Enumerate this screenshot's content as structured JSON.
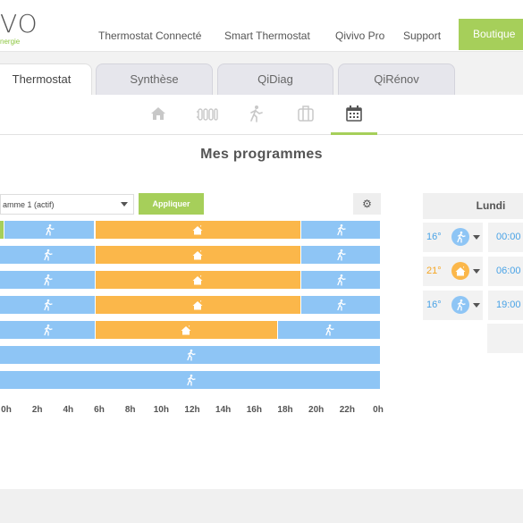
{
  "brand": {
    "logo_text": "VO",
    "tagline": "nergie",
    "accent": "#a6cf5a"
  },
  "nav": {
    "links": [
      "Thermostat Connecté",
      "Smart Thermostat",
      "Qivivo Pro",
      "Support"
    ],
    "shop_label": "Boutique"
  },
  "tabs": [
    "Thermostat",
    "Synthèse",
    "QiDiag",
    "QiRénov"
  ],
  "active_tab": "Thermostat",
  "subnav_icons": [
    "home-icon",
    "radiator-icon",
    "away-icon",
    "holiday-icon",
    "calendar-icon"
  ],
  "active_subnav": "calendar-icon",
  "page_title": "Mes programmes",
  "program_select": {
    "value": "amme 1 (actif)"
  },
  "apply_label": "Appliquer",
  "settings_icon": "gear-icon",
  "colors": {
    "eco": "#8ec5f5",
    "comfort": "#fbb74a",
    "green": "#a6cf5a"
  },
  "schedule": [
    [
      {
        "type": "green",
        "from": 0,
        "to": 0.3
      },
      {
        "type": "eco",
        "from": 0.3,
        "to": 6
      },
      {
        "type": "comfort",
        "from": 6,
        "to": 19
      },
      {
        "type": "eco",
        "from": 19,
        "to": 24
      }
    ],
    [
      {
        "type": "eco",
        "from": 0,
        "to": 6
      },
      {
        "type": "comfort",
        "from": 6,
        "to": 19
      },
      {
        "type": "eco",
        "from": 19,
        "to": 24
      }
    ],
    [
      {
        "type": "eco",
        "from": 0,
        "to": 6
      },
      {
        "type": "comfort",
        "from": 6,
        "to": 19
      },
      {
        "type": "eco",
        "from": 19,
        "to": 24
      }
    ],
    [
      {
        "type": "eco",
        "from": 0,
        "to": 6
      },
      {
        "type": "comfort",
        "from": 6,
        "to": 19
      },
      {
        "type": "eco",
        "from": 19,
        "to": 24
      }
    ],
    [
      {
        "type": "eco",
        "from": 0,
        "to": 6
      },
      {
        "type": "comfort",
        "from": 6,
        "to": 17.5
      },
      {
        "type": "eco",
        "from": 17.5,
        "to": 24
      }
    ],
    [
      {
        "type": "eco",
        "from": 0,
        "to": 24
      }
    ],
    [
      {
        "type": "eco",
        "from": 0,
        "to": 24
      }
    ]
  ],
  "hour_ticks": [
    "0h",
    "2h",
    "4h",
    "6h",
    "8h",
    "10h",
    "12h",
    "14h",
    "16h",
    "18h",
    "20h",
    "22h",
    "0h"
  ],
  "day_panel": {
    "day": "Lundi",
    "slots": [
      {
        "temp": "16°",
        "mode": "eco",
        "time": "00:00"
      },
      {
        "temp": "21°",
        "mode": "comfort",
        "time": "06:00"
      },
      {
        "temp": "16°",
        "mode": "eco",
        "time": "19:00"
      }
    ]
  }
}
